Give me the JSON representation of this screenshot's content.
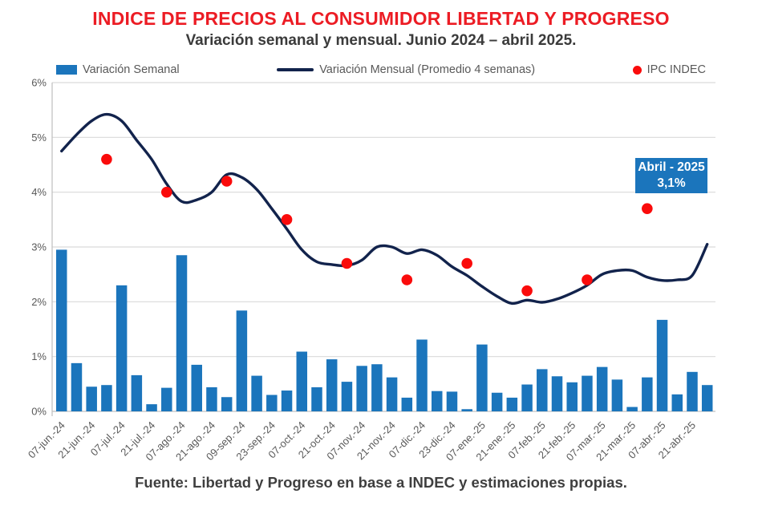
{
  "header": {
    "title": "INDICE DE PRECIOS AL CONSUMIDOR LIBERTAD Y PROGRESO",
    "subtitle": "Variación semanal y mensual. Junio 2024 – abril 2025."
  },
  "legend": [
    {
      "label": "Variación Semanal",
      "swatch": "bar",
      "color": "#1B75BC"
    },
    {
      "label": "Variación Mensual (Promedio 4 semanas)",
      "swatch": "line",
      "color": "#12234C"
    },
    {
      "label": "IPC INDEC",
      "swatch": "dot",
      "color": "#FA0B0B"
    }
  ],
  "annotation": {
    "line1": "Abril - 2025",
    "line2": "3,1%",
    "box_color": "#1B75BC"
  },
  "footer": {
    "source": "Fuente: Libertad y Progreso en base a INDEC y estimaciones propias."
  },
  "colors": {
    "bars": "#1B75BC",
    "line": "#12234C",
    "dots": "#FA0B0B",
    "grid": "#D9D9D9",
    "axis": "#BFBFBF",
    "tick_text": "#595959",
    "title_red": "#EC1C24"
  },
  "chart_data": {
    "type": "bar",
    "title": "INDICE DE PRECIOS AL CONSUMIDOR LIBERTAD Y PROGRESO",
    "xlabel": "",
    "ylabel": "",
    "ylim": [
      0,
      6
    ],
    "y_tick_labels": [
      "0%",
      "1%",
      "2%",
      "3%",
      "4%",
      "5%",
      "6%"
    ],
    "grid": true,
    "legend_position": "top",
    "weeks_total": 44,
    "x_tick_labels": [
      "07-jun.-24",
      "21-jun.-24",
      "07-jul.-24",
      "21-jul.-24",
      "07-ago.-24",
      "21-ago.-24",
      "09-sep.-24",
      "23-sep.-24",
      "07-oct.-24",
      "21-oct.-24",
      "07-nov.-24",
      "21-nov.-24",
      "07-dic.-24",
      "23-dic.-24",
      "07-ene.-25",
      "21-ene.-25",
      "07-feb.-25",
      "21-feb.-25",
      "07-mar.-25",
      "21-mar.-25",
      "07-abr.-25",
      "21-abr.-25"
    ],
    "x_tick_weeks": [
      1,
      3,
      5,
      7,
      9,
      11,
      13,
      15,
      17,
      19,
      21,
      23,
      25,
      27,
      29,
      31,
      33,
      35,
      37,
      39,
      41,
      43
    ],
    "series": [
      {
        "name": "Variación Semanal",
        "type": "bar",
        "color": "#1B75BC",
        "values": [
          2.95,
          0.88,
          0.45,
          0.48,
          2.3,
          0.66,
          0.13,
          0.43,
          2.85,
          0.85,
          0.44,
          0.26,
          1.84,
          0.65,
          0.3,
          0.38,
          1.09,
          0.44,
          0.95,
          0.54,
          0.83,
          0.86,
          0.62,
          0.25,
          1.31,
          0.37,
          0.36,
          0.04,
          1.22,
          0.34,
          0.25,
          0.49,
          0.77,
          0.64,
          0.53,
          0.65,
          0.81,
          0.58,
          0.08,
          0.62,
          1.67,
          0.31,
          0.72,
          0.48
        ]
      },
      {
        "name": "Variación Mensual (Promedio 4 semanas)",
        "type": "line",
        "color": "#12234C",
        "values": [
          4.75,
          5.05,
          5.3,
          5.42,
          5.3,
          4.95,
          4.6,
          4.15,
          3.83,
          3.86,
          4.0,
          4.32,
          4.27,
          4.05,
          3.7,
          3.33,
          2.95,
          2.73,
          2.68,
          2.66,
          2.76,
          3.0,
          3.0,
          2.88,
          2.95,
          2.85,
          2.64,
          2.48,
          2.28,
          2.1,
          1.97,
          2.03,
          1.99,
          2.05,
          2.16,
          2.3,
          2.5,
          2.57,
          2.57,
          2.45,
          2.39,
          2.4,
          2.48,
          3.05
        ]
      },
      {
        "name": "IPC INDEC",
        "type": "scatter",
        "color": "#FA0B0B",
        "points": [
          {
            "month": "jun-24",
            "week": 4,
            "value": 4.6
          },
          {
            "month": "jul-24",
            "week": 8,
            "value": 4.0
          },
          {
            "month": "ago-24",
            "week": 12,
            "value": 4.2
          },
          {
            "month": "sep-24",
            "week": 16,
            "value": 3.5
          },
          {
            "month": "oct-24",
            "week": 20,
            "value": 2.7
          },
          {
            "month": "nov-24",
            "week": 24,
            "value": 2.4
          },
          {
            "month": "dic-24",
            "week": 28,
            "value": 2.7
          },
          {
            "month": "ene-25",
            "week": 32,
            "value": 2.2
          },
          {
            "month": "feb-25",
            "week": 36,
            "value": 2.4
          },
          {
            "month": "mar-25",
            "week": 40,
            "value": 3.7
          }
        ]
      }
    ],
    "annotation": {
      "label": "Abril - 2025",
      "value_label": "3,1%",
      "value": 3.1
    }
  }
}
